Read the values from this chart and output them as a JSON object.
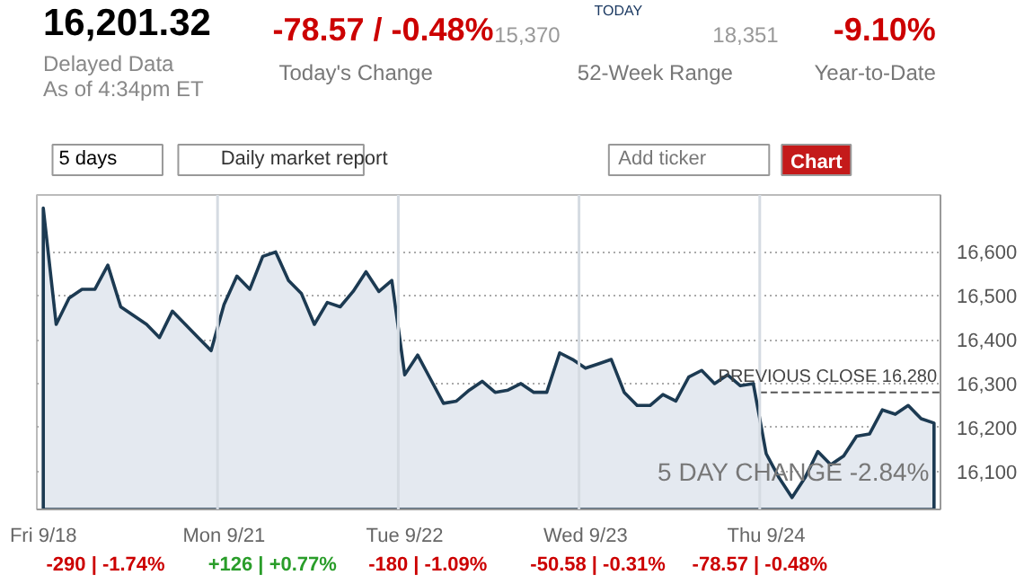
{
  "chart_data": {
    "type": "area",
    "categories": [
      "Fri 9/18",
      null,
      null,
      null,
      null,
      null,
      null,
      null,
      null,
      null,
      null,
      null,
      null,
      null,
      "Mon 9/21",
      null,
      null,
      null,
      null,
      null,
      null,
      null,
      null,
      null,
      null,
      null,
      null,
      null,
      "Tue 9/22",
      null,
      null,
      null,
      null,
      null,
      null,
      null,
      null,
      null,
      null,
      null,
      null,
      null,
      "Wed 9/23",
      null,
      null,
      null,
      null,
      null,
      null,
      null,
      null,
      null,
      null,
      null,
      null,
      null,
      "Thu 9/24",
      null,
      null,
      null,
      null,
      null,
      null,
      null,
      null,
      null,
      null,
      null,
      null,
      null
    ],
    "series": [
      {
        "color": "#1c3a52",
        "values": [
          16700,
          16435,
          16495,
          16515,
          16515,
          16570,
          16475,
          16455,
          16435,
          16405,
          16465,
          16435,
          16405,
          16375,
          16480,
          16545,
          16515,
          16590,
          16600,
          16535,
          16505,
          16435,
          16485,
          16475,
          16510,
          16555,
          16510,
          16535,
          16320,
          16365,
          16310,
          16255,
          16260,
          16285,
          16305,
          16280,
          16285,
          16300,
          16280,
          16280,
          16370,
          16355,
          16335,
          16345,
          16355,
          16280,
          16250,
          16250,
          16275,
          16260,
          16315,
          16330,
          16300,
          16320,
          16295,
          16300,
          16140,
          16085,
          16040,
          16085,
          16145,
          16115,
          16135,
          16180,
          16185,
          16240,
          16230,
          16250,
          16220,
          16210
        ]
      }
    ],
    "ylim": [
      16013,
      16730
    ],
    "yticks": [
      {
        "value": 16100,
        "label": "16,100"
      },
      {
        "value": 16200,
        "label": "16,200"
      },
      {
        "value": 16300,
        "label": "16,300"
      },
      {
        "value": 16400,
        "label": "16,400"
      },
      {
        "value": 16500,
        "label": "16,500"
      },
      {
        "value": 16600,
        "label": "16,600"
      }
    ],
    "grid": "y",
    "ref_lines": [
      {
        "axis": "y",
        "value": 16280,
        "label": "PREVIOUS CLOSE 16,280",
        "color": "#555555",
        "line_style": "dashed"
      }
    ],
    "annotations": [
      "16,201.32",
      "Delayed Data",
      "As of 4:34pm ET",
      "-78.57 / -0.48%",
      "Today's Change",
      "TODAY",
      "15,370",
      "18,351",
      "52-Week Range",
      "-9.10%",
      "Year-to-Date",
      "5 days",
      "Daily market report",
      "Add ticker",
      "Chart",
      "5 DAY CHANGE -2.84%",
      "-290 | -1.74%",
      "+126 | +0.77%",
      "-180 | -1.09%",
      "-50.58 | -0.31%",
      "-78.57 | -0.48%"
    ]
  }
}
